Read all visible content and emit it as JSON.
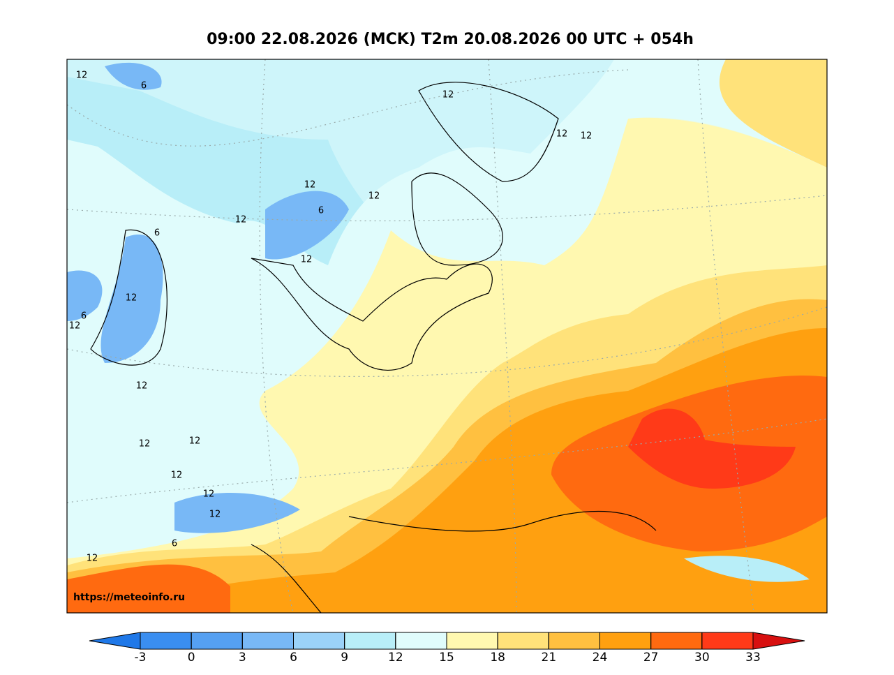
{
  "title": "09:00 22.08.2026 (MCK) T2m 20.08.2026 00 UTC + 054h",
  "watermark": "https://meteoinfo.ru",
  "contour_labels": [
    12,
    6,
    12,
    12,
    12,
    12,
    12,
    6,
    12,
    6,
    12,
    12,
    6,
    12,
    12,
    12,
    12,
    12,
    12,
    12,
    6,
    12
  ],
  "colorbar": {
    "ticks": [
      -3,
      0,
      3,
      6,
      9,
      12,
      15,
      18,
      21,
      24,
      27,
      30,
      33
    ],
    "colors": [
      "#1f78e8",
      "#3a8ef0",
      "#55a0f2",
      "#78b8f6",
      "#9bd2f8",
      "#b8eef8",
      "#e0fcfc",
      "#fff8b0",
      "#ffe27a",
      "#ffc040",
      "#ffa010",
      "#ff6a10",
      "#ff3a18",
      "#d81010"
    ]
  }
}
